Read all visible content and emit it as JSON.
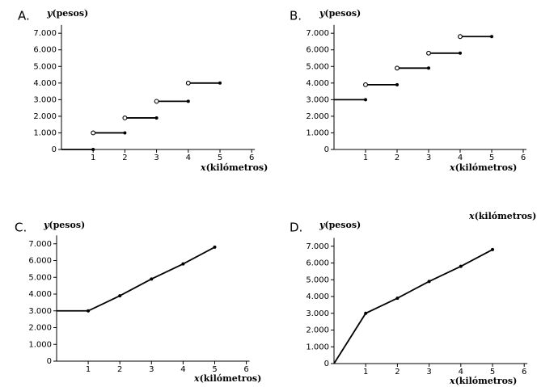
{
  "chart_data": [
    {
      "panel_label": "A.",
      "type": "line",
      "style": "step",
      "ylabel_var": "y",
      "ylabel_text": "(pesos)",
      "xlabel_var": "x",
      "xlabel_text": "(kilómetros)",
      "xlim": [
        0,
        6
      ],
      "ylim": [
        0,
        7500
      ],
      "x_ticks": [
        "1",
        "2",
        "3",
        "4",
        "5",
        "6"
      ],
      "y_ticks": [
        "0",
        "1.000",
        "2.000",
        "3.000",
        "4.000",
        "5.000",
        "6.000",
        "7.000"
      ],
      "segments": [
        {
          "x": [
            0,
            1
          ],
          "y": [
            0,
            0
          ],
          "start": "none",
          "end": "closed"
        },
        {
          "x": [
            1,
            2
          ],
          "y": [
            1000,
            1000
          ],
          "start": "open",
          "end": "closed"
        },
        {
          "x": [
            2,
            3
          ],
          "y": [
            1900,
            1900
          ],
          "start": "open",
          "end": "closed"
        },
        {
          "x": [
            3,
            4
          ],
          "y": [
            2900,
            2900
          ],
          "start": "open",
          "end": "closed"
        },
        {
          "x": [
            4,
            5
          ],
          "y": [
            4000,
            4000
          ],
          "start": "open",
          "end": "closed"
        }
      ]
    },
    {
      "panel_label": "B.",
      "type": "line",
      "style": "step",
      "ylabel_var": "y",
      "ylabel_text": "(pesos)",
      "xlabel_var": "x",
      "xlabel_text": "(kilómetros)",
      "xlim": [
        0,
        6
      ],
      "ylim": [
        0,
        7500
      ],
      "x_ticks": [
        "1",
        "2",
        "3",
        "4",
        "5",
        "6"
      ],
      "y_ticks": [
        "0",
        "1.000",
        "2.000",
        "3.000",
        "4.000",
        "5.000",
        "6.000",
        "7.000"
      ],
      "segments": [
        {
          "x": [
            0,
            1
          ],
          "y": [
            3000,
            3000
          ],
          "start": "none",
          "end": "closed"
        },
        {
          "x": [
            1,
            2
          ],
          "y": [
            3900,
            3900
          ],
          "start": "open",
          "end": "closed"
        },
        {
          "x": [
            2,
            3
          ],
          "y": [
            4900,
            4900
          ],
          "start": "open",
          "end": "closed"
        },
        {
          "x": [
            3,
            4
          ],
          "y": [
            5800,
            5800
          ],
          "start": "open",
          "end": "closed"
        },
        {
          "x": [
            4,
            5
          ],
          "y": [
            6800,
            6800
          ],
          "start": "open",
          "end": "closed"
        }
      ]
    },
    {
      "panel_label": "C.",
      "type": "line",
      "style": "polyline",
      "ylabel_var": "y",
      "ylabel_text": "(pesos)",
      "xlabel_var": "x",
      "xlabel_text": "(kilómetros)",
      "xlim": [
        0,
        6
      ],
      "ylim": [
        0,
        7500
      ],
      "x_ticks": [
        "1",
        "2",
        "3",
        "4",
        "5",
        "6"
      ],
      "y_ticks": [
        "0",
        "1.000",
        "2.000",
        "3.000",
        "4.000",
        "5.000",
        "6.000",
        "7.000"
      ],
      "points": [
        {
          "x": 0,
          "y": 3000,
          "marker": false
        },
        {
          "x": 1,
          "y": 3000,
          "marker": true
        },
        {
          "x": 2,
          "y": 3900,
          "marker": true
        },
        {
          "x": 3,
          "y": 4900,
          "marker": true
        },
        {
          "x": 4,
          "y": 5800,
          "marker": true
        },
        {
          "x": 5,
          "y": 6800,
          "marker": true
        }
      ]
    },
    {
      "panel_label": "D.",
      "type": "line",
      "style": "polyline",
      "ylabel_var": "y",
      "ylabel_text": "(pesos)",
      "xlabel_var": "x",
      "xlabel_text": "(kilómetros)",
      "extra_label_var": "x",
      "extra_label_text": "(kilómetros)",
      "xlim": [
        0,
        6
      ],
      "ylim": [
        0,
        7500
      ],
      "x_ticks": [
        "1",
        "2",
        "3",
        "4",
        "5",
        "6"
      ],
      "y_ticks": [
        "0",
        "1.000",
        "2.000",
        "3.000",
        "4.000",
        "5.000",
        "6.000",
        "7.000"
      ],
      "points": [
        {
          "x": 0,
          "y": 0,
          "marker": false
        },
        {
          "x": 1,
          "y": 3000,
          "marker": true
        },
        {
          "x": 2,
          "y": 3900,
          "marker": true
        },
        {
          "x": 3,
          "y": 4900,
          "marker": true
        },
        {
          "x": 4,
          "y": 5800,
          "marker": true
        },
        {
          "x": 5,
          "y": 6800,
          "marker": true
        }
      ]
    }
  ]
}
